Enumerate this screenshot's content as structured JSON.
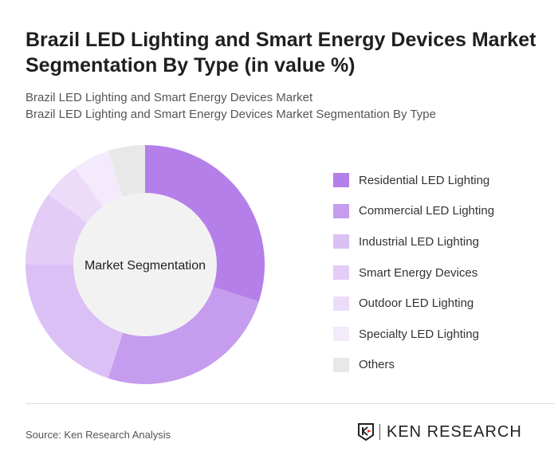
{
  "title": "Brazil LED Lighting and Smart Energy Devices Market Segmentation By Type (in value %)",
  "subtitles": [
    "Brazil LED Lighting and Smart Energy Devices Market",
    "Brazil LED Lighting and Smart Energy Devices Market Segmentation By Type"
  ],
  "source": "Source: Ken Research Analysis",
  "logo_text": "KEN RESEARCH",
  "chart_data": {
    "type": "pie",
    "variant": "donut",
    "center_label": "Market Segmentation",
    "categories": [
      "Residential LED Lighting",
      "Commercial LED Lighting",
      "Industrial LED Lighting",
      "Smart Energy Devices",
      "Outdoor LED Lighting",
      "Specialty LED Lighting",
      "Others"
    ],
    "values": [
      30,
      25,
      20,
      10,
      5,
      5,
      5
    ],
    "colors": [
      "#b57fea",
      "#c59cee",
      "#dbc0f6",
      "#e3cdf7",
      "#ecdcfa",
      "#f3ebfb",
      "#e8e8e8"
    ],
    "legend": "right"
  }
}
